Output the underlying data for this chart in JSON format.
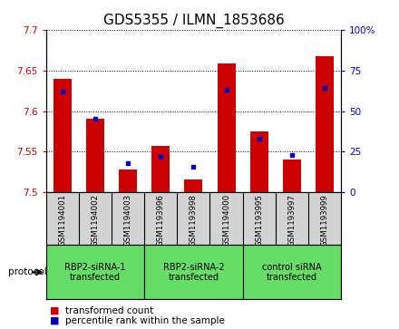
{
  "title": "GDS5355 / ILMN_1853686",
  "samples": [
    "GSM1194001",
    "GSM1194002",
    "GSM1194003",
    "GSM1193996",
    "GSM1193998",
    "GSM1194000",
    "GSM1193995",
    "GSM1193997",
    "GSM1193999"
  ],
  "red_values": [
    7.64,
    7.59,
    7.528,
    7.557,
    7.516,
    7.658,
    7.575,
    7.54,
    7.667
  ],
  "blue_values": [
    62,
    45,
    18,
    22,
    16,
    63,
    33,
    23,
    64
  ],
  "ylim_left": [
    7.5,
    7.7
  ],
  "ylim_right": [
    0,
    100
  ],
  "yticks_left": [
    7.5,
    7.55,
    7.6,
    7.65,
    7.7
  ],
  "yticks_right": [
    0,
    25,
    50,
    75,
    100
  ],
  "groups": [
    {
      "label": "RBP2-siRNA-1\ntransfected",
      "start": 0,
      "end": 3
    },
    {
      "label": "RBP2-siRNA-2\ntransfected",
      "start": 3,
      "end": 6
    },
    {
      "label": "control siRNA\ntransfected",
      "start": 6,
      "end": 9
    }
  ],
  "red_color": "#CC0000",
  "blue_color": "#0000BB",
  "bar_width": 0.55,
  "title_fontsize": 11,
  "tick_fontsize": 7.5,
  "legend_fontsize": 7.5,
  "xlabel_area_color": "#D3D3D3",
  "group_box_color": "#66DD66",
  "protocol_label": "protocol",
  "bar_base": 7.5
}
